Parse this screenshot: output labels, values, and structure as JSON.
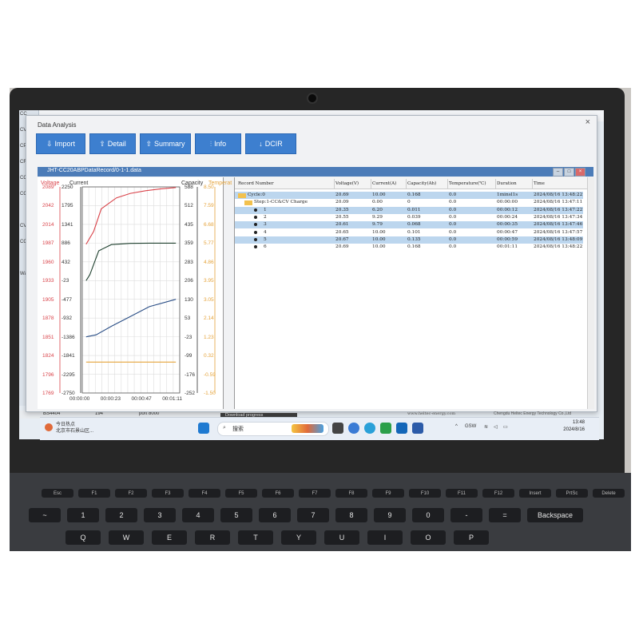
{
  "window": {
    "title": "Data Analysis",
    "close_glyph": "×",
    "toolbar": [
      {
        "label": "Import",
        "icon": "import-icon",
        "glyph": "⇩"
      },
      {
        "label": "Detail",
        "icon": "detail-icon",
        "glyph": "⇧"
      },
      {
        "label": "Summary",
        "icon": "summary-icon",
        "glyph": "⇧"
      },
      {
        "label": "Info",
        "icon": "info-icon",
        "glyph": "⫶"
      },
      {
        "label": "DCIR",
        "icon": "dcir-icon",
        "glyph": "↓"
      }
    ],
    "file_title": "JHT-CC20ABPDataRecord/0-1-1.data"
  },
  "chart_data": {
    "type": "line",
    "axes": {
      "voltage": {
        "title": "Voltage",
        "color": "#d9434a",
        "ticks": [
          "2089",
          "2042",
          "2014",
          "1987",
          "1960",
          "1933",
          "1905",
          "1878",
          "1851",
          "1824",
          "1796",
          "1769"
        ]
      },
      "current": {
        "title": "Current",
        "color": "#333333",
        "ticks": [
          "2250",
          "1795",
          "1341",
          "886",
          "432",
          "-23",
          "-477",
          "-932",
          "-1386",
          "-1841",
          "-2295",
          "-2750"
        ]
      },
      "capacity": {
        "title": "Capacity",
        "color": "#333333",
        "ticks": [
          "588",
          "512",
          "435",
          "359",
          "283",
          "206",
          "130",
          "53",
          "-23",
          "-99",
          "-176",
          "-252"
        ]
      },
      "temperature": {
        "title": "Temperat",
        "color": "#e5a33a",
        "ticks": [
          "8.50",
          "7.59",
          "6.68",
          "5.77",
          "4.86",
          "3.95",
          "3.05",
          "2.14",
          "1.23",
          "0.32",
          "-0.59",
          "-1.50"
        ]
      }
    },
    "x_ticks": [
      "00:00:00",
      "00:00:23",
      "00:00:47",
      "00:01:11"
    ],
    "series": [
      {
        "name": "Voltage",
        "axis": "voltage",
        "color": "#d9434a",
        "x": [
          0,
          6,
          12,
          24,
          35,
          47,
          59,
          71
        ],
        "y": [
          2000,
          2020,
          2055,
          2072,
          2079,
          2083,
          2086,
          2088
        ]
      },
      {
        "name": "Current",
        "axis": "current",
        "color": "#1d3f2d",
        "x": [
          0,
          3,
          10,
          20,
          35,
          50,
          71
        ],
        "y": [
          -23,
          120,
          700,
          850,
          880,
          886,
          886
        ]
      },
      {
        "name": "Capacity",
        "axis": "capacity",
        "color": "#2a4e86",
        "x": [
          0,
          8,
          20,
          35,
          50,
          71
        ],
        "y": [
          -23,
          -15,
          20,
          60,
          100,
          130
        ]
      },
      {
        "name": "Temperature",
        "axis": "temperature",
        "color": "#e5a33a",
        "x": [
          0,
          71
        ],
        "y": [
          0.0,
          0.0
        ]
      }
    ],
    "xlim": [
      -3,
      74
    ]
  },
  "table": {
    "columns": [
      "Record Number",
      "Voltage(V)",
      "Current(A)",
      "Capacity(Ah)",
      "Temperature(℃)",
      "Duration",
      "Time"
    ],
    "rows": [
      {
        "record": "Cycle:0",
        "voltage": "20.69",
        "current": "10.00",
        "capacity": "0.168",
        "temp": "0.0",
        "duration": "1minsl1s",
        "time": "2024/08/16 13:48:22",
        "level": 0,
        "selected": true
      },
      {
        "record": "Step:1-CC&CV Charge",
        "voltage": "20.09",
        "current": "0.00",
        "capacity": "0",
        "temp": "0.0",
        "duration": "00:00:00",
        "time": "2024/08/16 13:47:11",
        "level": 1,
        "selected": false
      },
      {
        "record": "1",
        "voltage": "20.35",
        "current": "6.20",
        "capacity": "0.011",
        "temp": "0.0",
        "duration": "00:00:12",
        "time": "2024/08/16 13:47:22",
        "level": 2,
        "selected": true
      },
      {
        "record": "2",
        "voltage": "20.55",
        "current": "9.29",
        "capacity": "0.039",
        "temp": "0.0",
        "duration": "00:00:24",
        "time": "2024/08/16 13:47:34",
        "level": 2,
        "selected": false
      },
      {
        "record": "3",
        "voltage": "20.61",
        "current": "9.79",
        "capacity": "0.068",
        "temp": "0.0",
        "duration": "00:00:35",
        "time": "2024/08/16 13:47:46",
        "level": 2,
        "selected": true
      },
      {
        "record": "4",
        "voltage": "20.65",
        "current": "10.00",
        "capacity": "0.101",
        "temp": "0.0",
        "duration": "00:00:47",
        "time": "2024/08/16 13:47:57",
        "level": 2,
        "selected": false
      },
      {
        "record": "5",
        "voltage": "20.67",
        "current": "10.00",
        "capacity": "0.135",
        "temp": "0.0",
        "duration": "00:00:59",
        "time": "2024/08/16 13:48:09",
        "level": 2,
        "selected": true
      },
      {
        "record": "6",
        "voltage": "20.69",
        "current": "10.00",
        "capacity": "0.168",
        "temp": "0.0",
        "duration": "00:01:11",
        "time": "2024/08/16 13:48:22",
        "level": 2,
        "selected": false
      }
    ]
  },
  "background_app": {
    "sidebar": [
      "CC",
      "CV",
      "CP D",
      "CR D",
      "CCCV",
      "CC D",
      "",
      "CV D",
      "CCCV",
      "",
      "Wait"
    ],
    "status": [
      "BS4404",
      "194",
      "port 8000"
    ]
  },
  "footer": {
    "download": "Download progress",
    "url": "www.heltec-energy.com",
    "company": "Chengdu Heltec Energy Technology Co.,Ltd"
  },
  "taskbar": {
    "weather_line1": "今日热点",
    "weather_line2": "北京市石景山区...",
    "search_placeholder": "搜索",
    "tray_lang": "GSW",
    "time": "13:48",
    "date": "2024/8/16"
  },
  "keyboard": {
    "fn_row": [
      "Esc",
      "F1",
      "F2",
      "F3",
      "F4",
      "F5",
      "F6",
      "F7",
      "F8",
      "F9",
      "F10",
      "F11",
      "F12",
      "Insert",
      "PrtSc",
      "Delete"
    ],
    "num_row": [
      "~",
      "1",
      "2",
      "3",
      "4",
      "5",
      "6",
      "7",
      "8",
      "9",
      "0",
      "-",
      "=",
      "Backspace"
    ],
    "q_row": [
      "Q",
      "W",
      "E",
      "R",
      "T",
      "Y",
      "U",
      "I",
      "O",
      "P"
    ]
  }
}
